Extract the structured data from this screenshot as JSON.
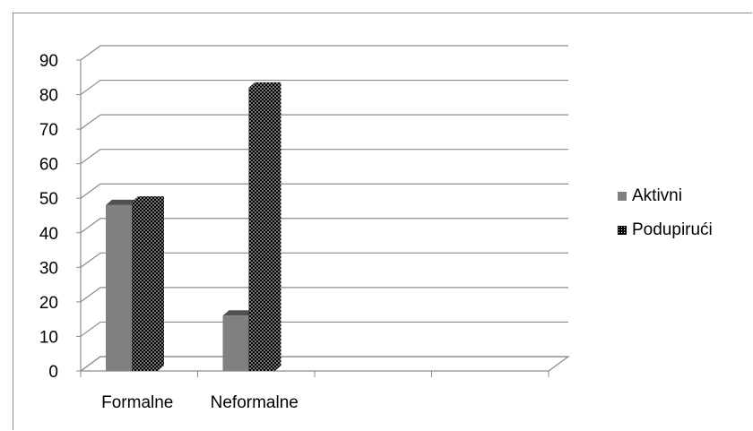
{
  "chart_data": {
    "type": "bar",
    "categories": [
      "Formalne",
      "Neformalne",
      "",
      ""
    ],
    "series": [
      {
        "name": "Aktivni",
        "values": [
          48,
          16,
          null,
          null
        ],
        "color": "#808080",
        "pattern": "solid"
      },
      {
        "name": "Podupirući",
        "values": [
          49,
          82,
          null,
          null
        ],
        "color": "#000000",
        "pattern": "dotted"
      }
    ],
    "ylim": [
      0,
      90
    ],
    "yticks": [
      0,
      10,
      20,
      30,
      40,
      50,
      60,
      70,
      80,
      90
    ],
    "grid": true,
    "three_d": true,
    "legend_position": "right",
    "title": "",
    "xlabel": "",
    "ylabel": ""
  }
}
